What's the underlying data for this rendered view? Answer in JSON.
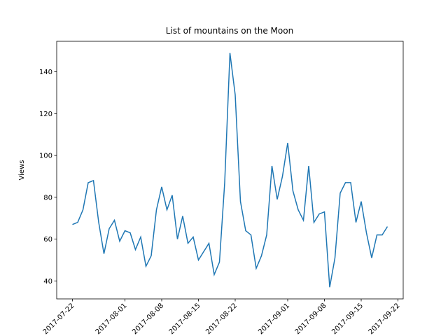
{
  "chart_data": {
    "type": "line",
    "title": "List of mountains on the Moon",
    "y_label": "Views",
    "x": [
      "2017-07-22",
      "2017-07-23",
      "2017-07-24",
      "2017-07-25",
      "2017-07-26",
      "2017-07-27",
      "2017-07-28",
      "2017-07-29",
      "2017-07-30",
      "2017-07-31",
      "2017-08-01",
      "2017-08-02",
      "2017-08-03",
      "2017-08-04",
      "2017-08-05",
      "2017-08-06",
      "2017-08-07",
      "2017-08-08",
      "2017-08-09",
      "2017-08-10",
      "2017-08-11",
      "2017-08-12",
      "2017-08-13",
      "2017-08-14",
      "2017-08-15",
      "2017-08-16",
      "2017-08-17",
      "2017-08-18",
      "2017-08-19",
      "2017-08-20",
      "2017-08-21",
      "2017-08-22",
      "2017-08-23",
      "2017-08-24",
      "2017-08-25",
      "2017-08-26",
      "2017-08-27",
      "2017-08-28",
      "2017-08-29",
      "2017-08-30",
      "2017-08-31",
      "2017-09-01",
      "2017-09-02",
      "2017-09-03",
      "2017-09-04",
      "2017-09-05",
      "2017-09-06",
      "2017-09-07",
      "2017-09-08",
      "2017-09-09",
      "2017-09-10",
      "2017-09-11",
      "2017-09-12",
      "2017-09-13",
      "2017-09-14",
      "2017-09-15",
      "2017-09-16",
      "2017-09-17",
      "2017-09-18",
      "2017-09-19",
      "2017-09-20"
    ],
    "series": [
      {
        "name": "Views",
        "color": "#1f77b4",
        "values": [
          67,
          68,
          74,
          87,
          88,
          68,
          53,
          65,
          69,
          59,
          64,
          63,
          55,
          61,
          47,
          52,
          74,
          85,
          74,
          81,
          60,
          71,
          58,
          61,
          50,
          54,
          58,
          43,
          49,
          87,
          149,
          129,
          78,
          64,
          62,
          46,
          52,
          62,
          95,
          79,
          90,
          106,
          83,
          74,
          69,
          95,
          68,
          72,
          73,
          37,
          51,
          82,
          87,
          87,
          68,
          78,
          63,
          51,
          62,
          62,
          66
        ]
      }
    ],
    "xlim": [
      "2017-07-19",
      "2017-09-23"
    ],
    "xticks": [
      "2017-07-22",
      "2017-08-01",
      "2017-08-08",
      "2017-08-15",
      "2017-08-22",
      "2017-09-01",
      "2017-09-08",
      "2017-09-15",
      "2017-09-22"
    ],
    "ylim": [
      31.4,
      154.6
    ],
    "yticks": [
      40,
      60,
      80,
      100,
      120,
      140
    ]
  }
}
